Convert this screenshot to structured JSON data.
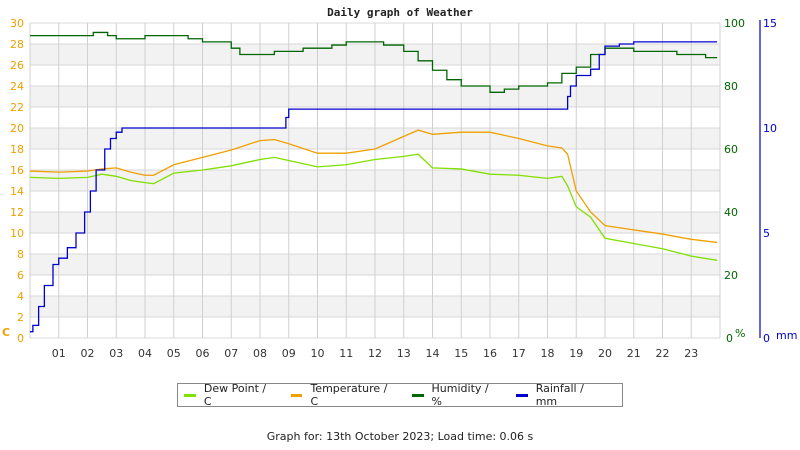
{
  "chart_data": {
    "type": "line",
    "title": "Daily graph of Weather",
    "xlabel": "",
    "x_ticks": [
      "01",
      "02",
      "03",
      "04",
      "05",
      "06",
      "07",
      "08",
      "09",
      "10",
      "11",
      "12",
      "13",
      "14",
      "15",
      "16",
      "17",
      "18",
      "19",
      "20",
      "21",
      "22",
      "23"
    ],
    "x_range": [
      0,
      24
    ],
    "axes": {
      "left": {
        "label": "C",
        "ticks": [
          0,
          2,
          4,
          6,
          8,
          10,
          12,
          14,
          16,
          18,
          20,
          22,
          24,
          26,
          28,
          30
        ],
        "range": [
          0,
          30
        ],
        "color": "#f0a000"
      },
      "right1": {
        "label": "%",
        "ticks": [
          0,
          20,
          40,
          60,
          80,
          100
        ],
        "range": [
          0,
          100
        ],
        "color": "#006600"
      },
      "right2": {
        "label": "mm",
        "ticks": [
          0,
          5,
          10,
          15
        ],
        "range": [
          0,
          15
        ],
        "color": "#0000cc"
      }
    },
    "grid": true,
    "legend_position": "bottom",
    "series": [
      {
        "name": "Dew Point / C",
        "color": "#80e000",
        "axis": "left",
        "x": [
          0,
          1,
          2,
          2.5,
          3,
          3.5,
          4,
          4.3,
          5,
          6,
          7,
          8,
          8.5,
          9,
          10,
          11,
          12,
          13,
          13.5,
          14,
          15,
          16,
          17,
          18,
          18.5,
          18.7,
          19,
          19.5,
          20,
          21,
          22,
          23,
          23.9
        ],
        "values": [
          15.3,
          15.2,
          15.3,
          15.6,
          15.4,
          15.0,
          14.8,
          14.7,
          15.7,
          16.0,
          16.4,
          17.0,
          17.2,
          16.9,
          16.3,
          16.5,
          17.0,
          17.3,
          17.5,
          16.2,
          16.1,
          15.6,
          15.5,
          15.2,
          15.4,
          14.5,
          12.5,
          11.5,
          9.5,
          9.0,
          8.5,
          7.8,
          7.4
        ]
      },
      {
        "name": "Temperature / C",
        "color": "#f0a000",
        "axis": "left",
        "x": [
          0,
          1,
          2,
          2.5,
          3,
          3.5,
          4,
          4.3,
          5,
          6,
          7,
          8,
          8.5,
          9,
          10,
          11,
          12,
          13,
          13.5,
          14,
          15,
          16,
          17,
          18,
          18.5,
          18.7,
          19,
          19.5,
          20,
          21,
          22,
          23,
          23.9
        ],
        "values": [
          15.9,
          15.8,
          15.9,
          16.1,
          16.2,
          15.8,
          15.5,
          15.5,
          16.5,
          17.2,
          17.9,
          18.8,
          18.9,
          18.5,
          17.6,
          17.6,
          18.0,
          19.2,
          19.8,
          19.4,
          19.6,
          19.6,
          19.0,
          18.3,
          18.1,
          17.5,
          14.0,
          12.0,
          10.7,
          10.3,
          9.9,
          9.4,
          9.1
        ]
      },
      {
        "name": "Humidity / %",
        "color": "#006600",
        "axis": "right1",
        "x": [
          0,
          1,
          2,
          2.2,
          2.7,
          3,
          3.5,
          4,
          5,
          5.5,
          6,
          7,
          7.3,
          8,
          8.5,
          9,
          9.5,
          10,
          10.5,
          11,
          12,
          12.3,
          13,
          13.5,
          14,
          14.5,
          15,
          15.5,
          16,
          16.5,
          17,
          17.5,
          18,
          18.5,
          19,
          19.5,
          20,
          20.5,
          21,
          22,
          22.5,
          23,
          23.5,
          23.9
        ],
        "values": [
          96,
          96,
          96,
          97,
          96,
          95,
          95,
          96,
          96,
          95,
          94,
          92,
          90,
          90,
          91,
          91,
          92,
          92,
          93,
          94,
          94,
          93,
          91,
          88,
          85,
          82,
          80,
          80,
          78,
          79,
          80,
          80,
          81,
          84,
          86,
          90,
          92,
          92,
          91,
          91,
          90,
          90,
          89,
          89
        ]
      },
      {
        "name": "Rainfall / mm",
        "color": "#0000cc",
        "axis": "right2",
        "x": [
          0,
          0.1,
          0.3,
          0.5,
          0.8,
          1,
          1.3,
          1.6,
          1.9,
          2.1,
          2.3,
          2.6,
          2.8,
          3,
          3.2,
          3.4,
          3.6,
          4,
          5,
          6,
          7,
          8,
          8.6,
          8.9,
          9,
          9.5,
          10,
          11,
          12,
          13,
          14,
          15,
          16,
          17,
          18,
          18.5,
          18.7,
          18.8,
          19,
          19.5,
          19.8,
          20,
          20.5,
          21,
          22,
          23,
          23.9
        ],
        "values": [
          0.3,
          0.6,
          1.5,
          2.5,
          3.5,
          3.8,
          4.3,
          5.0,
          6.0,
          7.0,
          8.0,
          9.0,
          9.5,
          9.8,
          10.0,
          10.0,
          10.0,
          10.0,
          10.0,
          10.0,
          10.0,
          10.0,
          10.0,
          10.5,
          10.9,
          10.9,
          10.9,
          10.9,
          10.9,
          10.9,
          10.9,
          10.9,
          10.9,
          10.9,
          10.9,
          10.9,
          11.5,
          12.0,
          12.5,
          12.8,
          13.5,
          13.9,
          14.0,
          14.1,
          14.1,
          14.1,
          14.1
        ]
      }
    ]
  },
  "legend": {
    "items": [
      {
        "label": "Dew Point / C",
        "color": "#80e000"
      },
      {
        "label": "Temperature / C",
        "color": "#f0a000"
      },
      {
        "label": "Humidity / %",
        "color": "#006600"
      },
      {
        "label": "Rainfall / mm",
        "color": "#0000cc"
      }
    ]
  },
  "footer": {
    "text": "Graph for: 13th October 2023; Load time: 0.06 s"
  }
}
